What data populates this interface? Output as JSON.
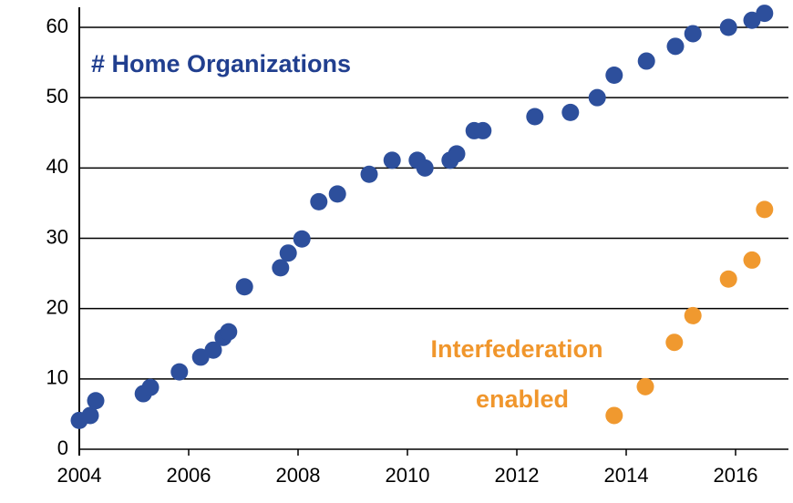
{
  "chart_data": {
    "type": "scatter",
    "annotations": [
      {
        "text": "# Home Organizations",
        "color": "#213f8f"
      },
      {
        "text": "Interfederation",
        "color": "#f0962c"
      },
      {
        "text": "enabled",
        "color": "#f0962c"
      }
    ],
    "xlim": [
      2004,
      2017
    ],
    "xticks": [
      2004,
      2006,
      2008,
      2010,
      2012,
      2014,
      2016
    ],
    "ylim": [
      0,
      63
    ],
    "yticks": [
      0,
      10,
      20,
      30,
      40,
      50,
      60
    ],
    "grid": true,
    "series": [
      {
        "color": "#2d4f9c",
        "x": [
          2004.0,
          2004.2,
          2004.3,
          2005.17,
          2005.3,
          2005.83,
          2006.22,
          2006.45,
          2006.63,
          2006.73,
          2007.02,
          2007.68,
          2007.82,
          2008.07,
          2008.38,
          2008.72,
          2009.3,
          2009.72,
          2010.18,
          2010.32,
          2010.78,
          2010.9,
          2011.22,
          2011.38,
          2012.33,
          2012.98,
          2013.47,
          2013.78,
          2014.37,
          2014.9,
          2015.22,
          2015.87,
          2016.3,
          2016.53
        ],
        "values": [
          4.1,
          4.8,
          6.9,
          7.9,
          8.8,
          11,
          13.1,
          14.1,
          15.9,
          16.7,
          23.1,
          25.8,
          27.9,
          29.9,
          35.2,
          36.3,
          39.1,
          41.1,
          41.1,
          40,
          41.1,
          42,
          45.3,
          45.3,
          47.3,
          47.9,
          50,
          53.2,
          55.2,
          57.3,
          59.1,
          60,
          61,
          62
        ]
      },
      {
        "color": "#f0992f",
        "x": [
          2013.78,
          2014.35,
          2014.88,
          2015.22,
          2015.87,
          2016.3,
          2016.53
        ],
        "values": [
          4.8,
          8.9,
          15.2,
          19,
          24.2,
          26.9,
          34.1
        ]
      }
    ]
  }
}
